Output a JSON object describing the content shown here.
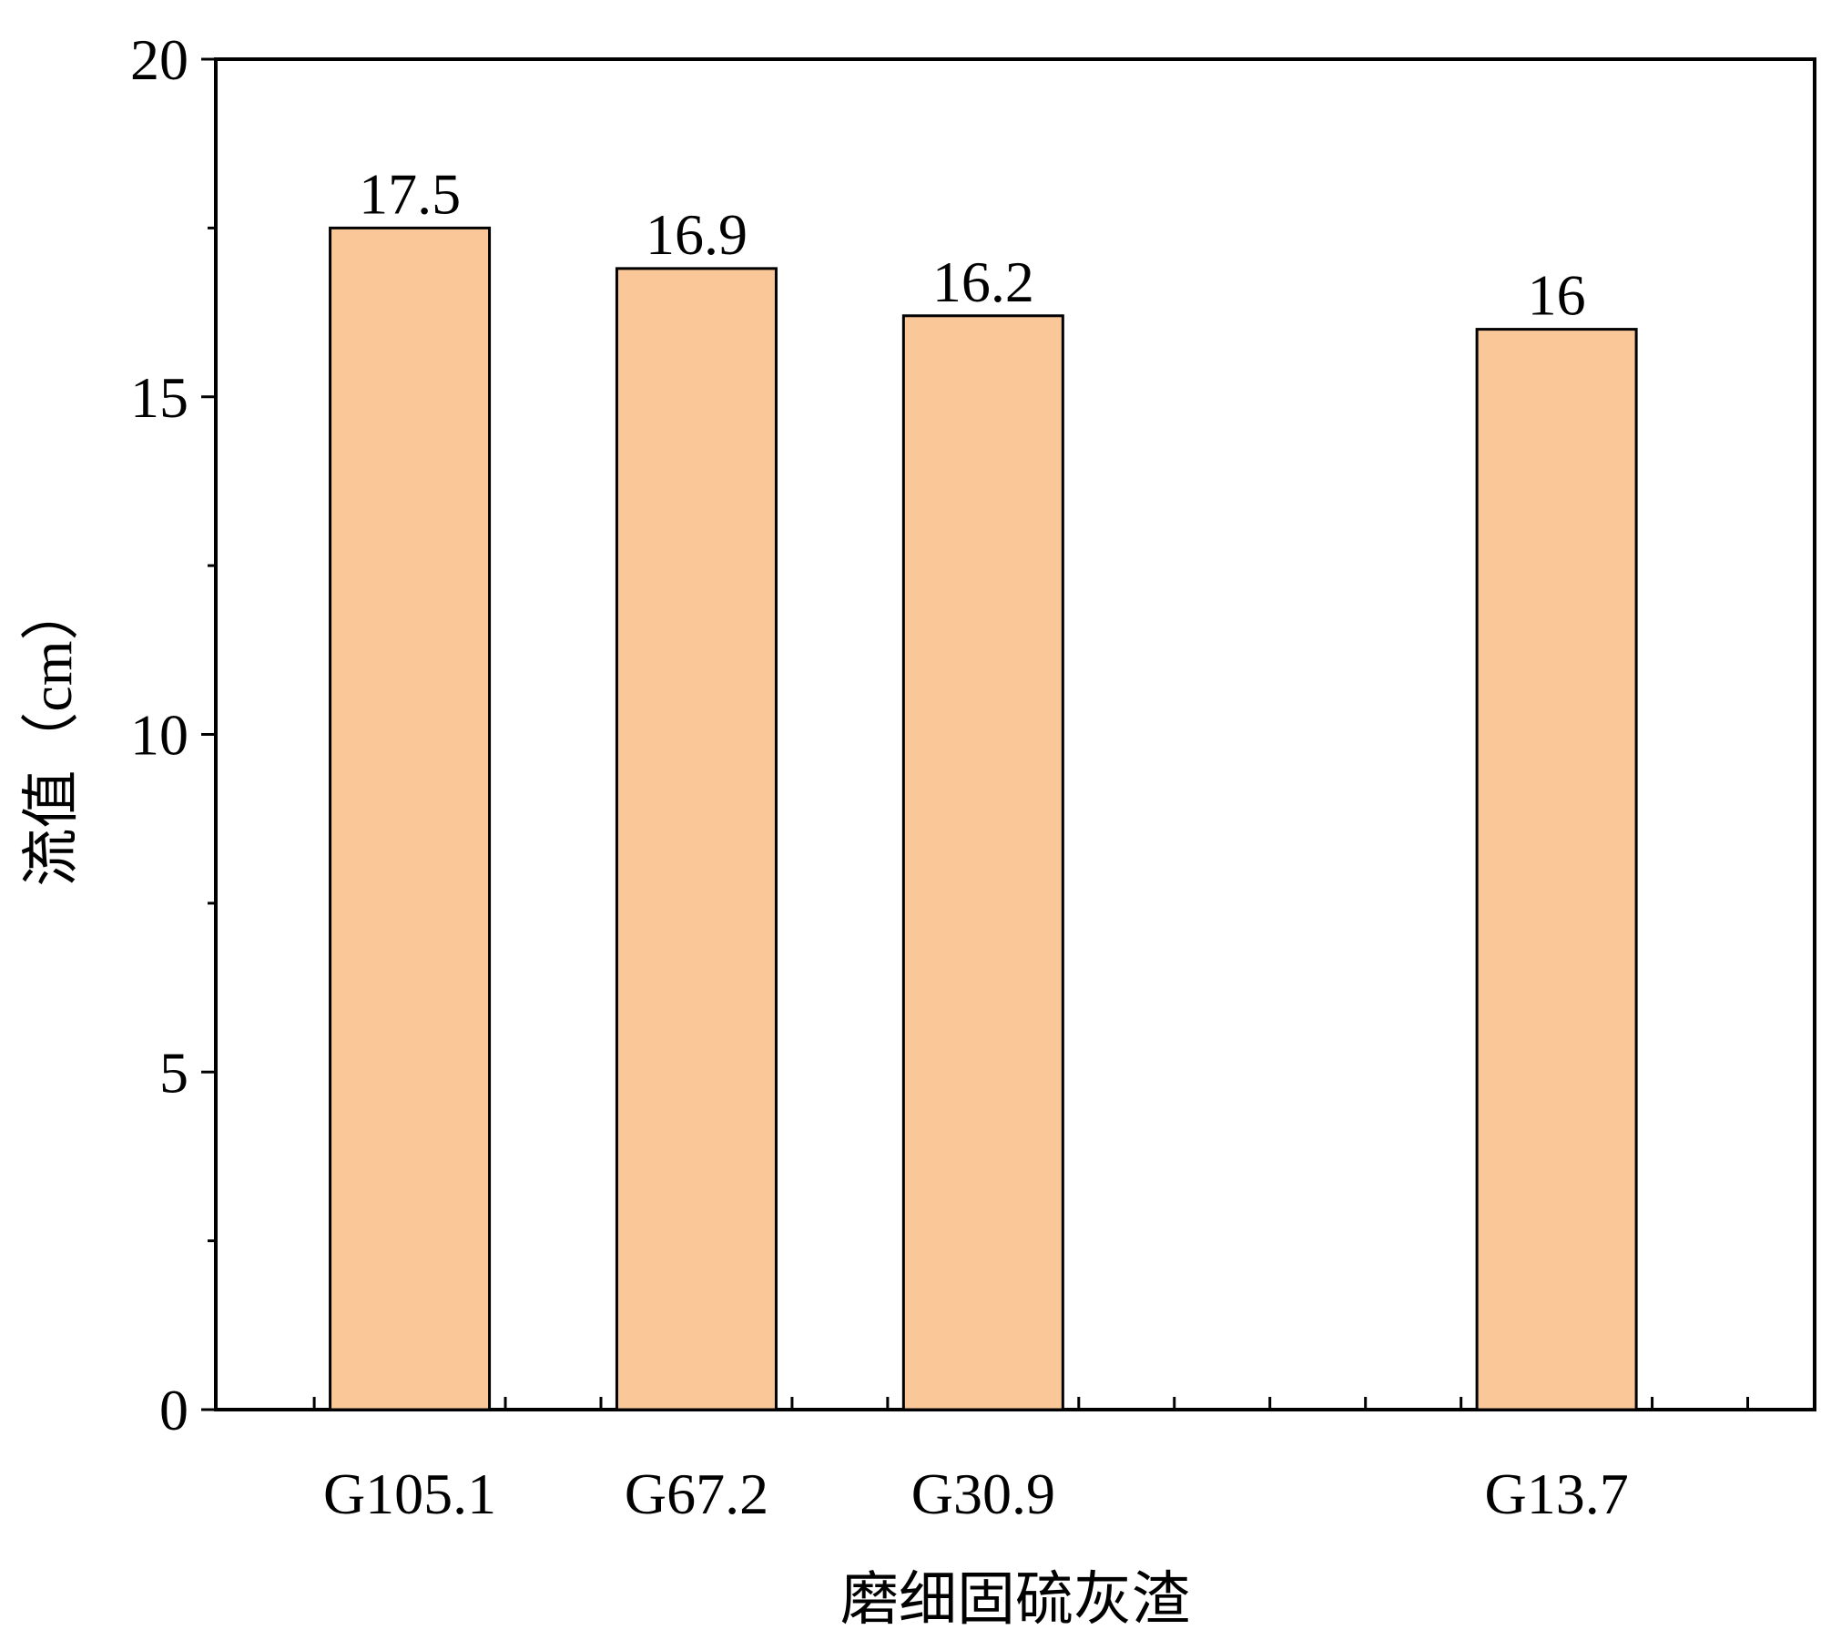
{
  "chart_data": {
    "type": "bar",
    "categories": [
      "G105.1",
      "G67.2",
      "G30.9",
      "G13.7"
    ],
    "values": [
      17.5,
      16.9,
      16.2,
      16
    ],
    "data_labels": [
      "17.5",
      "16.9",
      "16.2",
      "16"
    ],
    "category_positions": [
      2,
      5,
      8,
      14
    ],
    "x_range": [
      -0.03,
      16.7
    ],
    "xlabel": "磨细固硫灰渣",
    "ylabel": "流值（cm）",
    "ylim": [
      0,
      20
    ],
    "yticks": [
      0,
      5,
      10,
      15,
      20
    ],
    "ytick_labels": [
      "0",
      "5",
      "10",
      "15",
      "20"
    ],
    "bar_color": "#FAC898",
    "bar_edge_color": "#000000",
    "grid": false,
    "legend": "none"
  }
}
